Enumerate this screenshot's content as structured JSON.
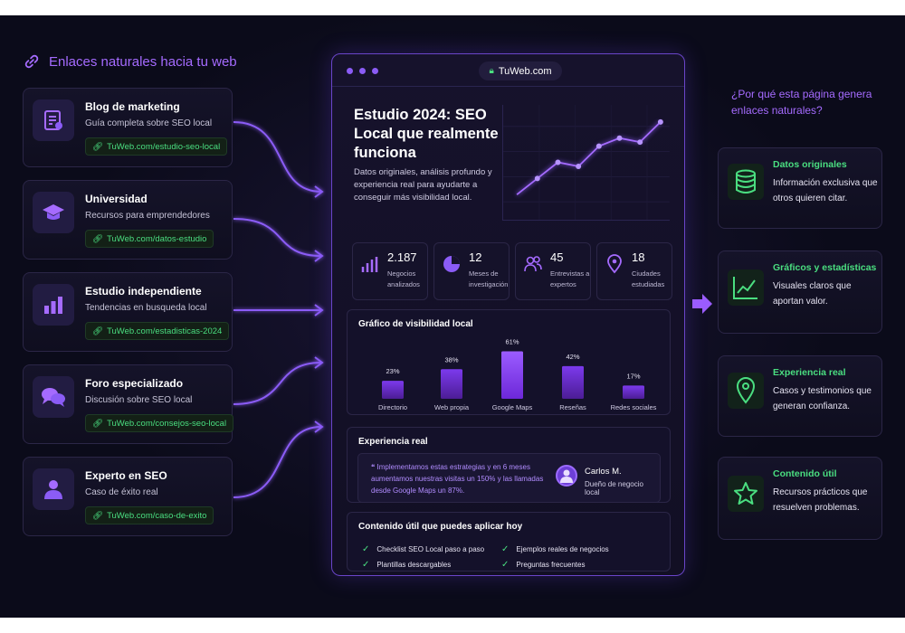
{
  "left_header": {
    "title": "Enlaces naturales hacia tu web"
  },
  "sources": [
    {
      "title": "Blog de marketing",
      "subtitle": "Guía completa sobre SEO local",
      "link": "TuWeb.com/estudio-seo-local",
      "icon": "document-icon"
    },
    {
      "title": "Universidad",
      "subtitle": "Recursos para emprendedores",
      "link": "TuWeb.com/datos-estudio",
      "icon": "graduation-cap-icon"
    },
    {
      "title": "Estudio independiente",
      "subtitle": "Tendencias en busqueda local",
      "link": "TuWeb.com/estadisticas-2024",
      "icon": "bar-chart-icon"
    },
    {
      "title": "Foro especializado",
      "subtitle": "Discusión sobre SEO local",
      "link": "TuWeb.com/consejos-seo-local",
      "icon": "chat-bubbles-icon"
    },
    {
      "title": "Experto en SEO",
      "subtitle": "Caso de éxito real",
      "link": "TuWeb.com/caso-de-exito",
      "icon": "person-icon"
    }
  ],
  "browser": {
    "url": "TuWeb.com",
    "hero_title": "Estudio 2024: SEO Local que realmente funciona",
    "hero_description": "Datos originales, análisis profundo y experiencia real para ayudarte a conseguir más visibilidad local.",
    "stats": [
      {
        "value": "2.187",
        "label": "Negocios analizados",
        "icon": "bars-icon"
      },
      {
        "value": "12",
        "label": "Meses de investigación",
        "icon": "pie-icon"
      },
      {
        "value": "45",
        "label": "Entrevistas a expertos",
        "icon": "users-icon"
      },
      {
        "value": "18",
        "label": "Ciudades estudiadas",
        "icon": "location-pin-icon"
      }
    ],
    "chart_panel": {
      "title": "Gráfico de visibilidad local"
    },
    "experience": {
      "title": "Experiencia real",
      "quote": "Implementamos estas estrategias y en 6 meses aumentamos nuestras visitas un 150% y las llamadas desde Google Maps un 87%.",
      "author_name": "Carlos M.",
      "author_role": "Dueño de negocio local"
    },
    "content_panel": {
      "title": "Contenido útil que puedes aplicar hoy",
      "items": [
        "Checklist SEO Local paso a paso",
        "Ejemplos reales de negocios",
        "Plantillas descargables",
        "Preguntas frecuentes"
      ]
    }
  },
  "right_header": {
    "title": "¿Por qué esta página genera enlaces naturales?"
  },
  "benefits": [
    {
      "title": "Datos originales",
      "description": "Información exclusiva que otros quieren citar.",
      "icon": "database-icon"
    },
    {
      "title": "Gráficos y estadísticas",
      "description": "Visuales claros que aportan valor.",
      "icon": "line-chart-icon"
    },
    {
      "title": "Experiencia real",
      "description": "Casos y testimonios que generan confianza.",
      "icon": "map-pin-icon"
    },
    {
      "title": "Contenido útil",
      "description": "Recursos prácticos que resuelven problemas.",
      "icon": "star-icon"
    }
  ],
  "colors": {
    "accent": "#8b5cf6",
    "green": "#4ade80",
    "background": "#0b0b1a"
  },
  "chart_data": [
    {
      "type": "bar",
      "title": "Gráfico de visibilidad local",
      "categories": [
        "Directorio",
        "Web propia",
        "Google Maps",
        "Reseñas",
        "Redes sociales"
      ],
      "values": [
        23,
        38,
        61,
        42,
        17
      ],
      "value_labels": [
        "23%",
        "38%",
        "61%",
        "42%",
        "17%"
      ],
      "ylim": [
        0,
        65
      ]
    },
    {
      "type": "line",
      "values": [
        2,
        4,
        6,
        5.5,
        8,
        9,
        8.5,
        11
      ],
      "ylim": [
        0,
        12
      ]
    }
  ]
}
